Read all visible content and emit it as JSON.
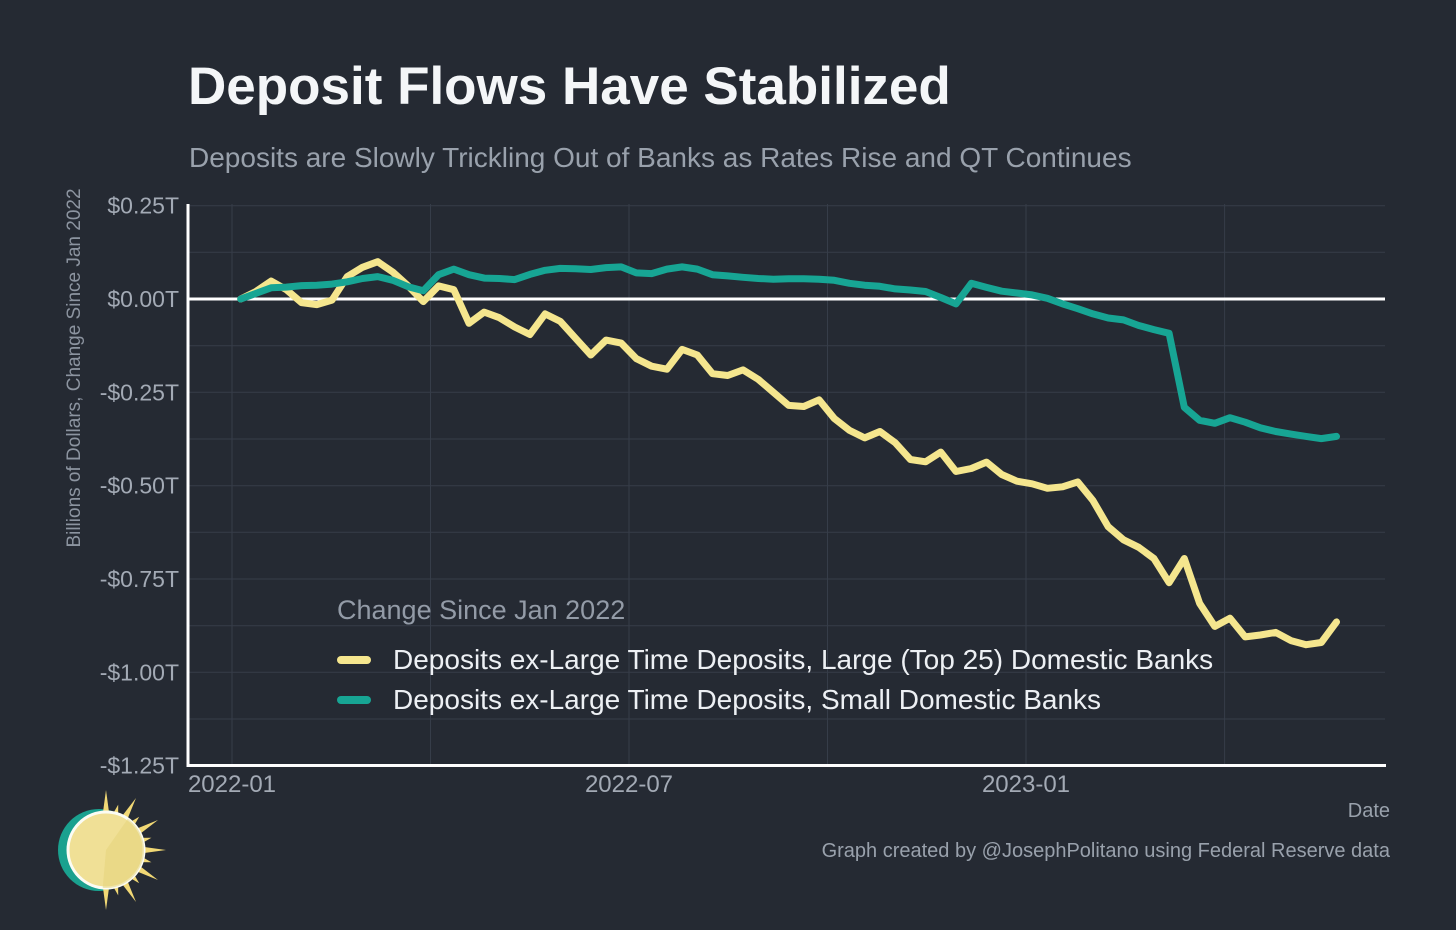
{
  "chart_data": {
    "type": "line",
    "title": "Deposit Flows Have Stabilized",
    "subtitle": "Deposits are Slowly Trickling Out of Banks as Rates Rise and QT Continues",
    "xlabel": "Date",
    "ylabel": "Billions of Dollars, Change Since Jan 2022",
    "legend": {
      "title": "Change Since Jan 2022",
      "position": "inside-bottom-left"
    },
    "x": {
      "start": "2022-01",
      "frequency": "weekly",
      "tick_labels": [
        "2022-01",
        "2022-07",
        "2023-01"
      ],
      "tick_month_offsets": [
        0,
        6,
        12
      ],
      "gridline_month_offsets": [
        0,
        3,
        6,
        9,
        12,
        15
      ]
    },
    "y": {
      "tick_labels": [
        "$0.25T",
        "$0.00T",
        "-$0.25T",
        "-$0.50T",
        "-$0.75T",
        "-$1.00T",
        "-$1.25T"
      ],
      "tick_values": [
        0.25,
        0,
        -0.25,
        -0.5,
        -0.75,
        -1,
        -1.25
      ],
      "lim": [
        -1.25,
        0.25
      ],
      "gridline_step": 0.125,
      "units": "trillions_usd"
    },
    "series": [
      {
        "name": "Deposits ex-Large Time Deposits, Large (Top 25) Domestic Banks",
        "color": "#f5e68e",
        "values": [
          0.0,
          0.02,
          0.048,
          0.025,
          -0.01,
          -0.015,
          -0.003,
          0.06,
          0.085,
          0.1,
          0.072,
          0.035,
          -0.007,
          0.035,
          0.025,
          -0.065,
          -0.035,
          -0.05,
          -0.075,
          -0.095,
          -0.04,
          -0.06,
          -0.105,
          -0.15,
          -0.11,
          -0.118,
          -0.16,
          -0.18,
          -0.188,
          -0.135,
          -0.15,
          -0.2,
          -0.205,
          -0.19,
          -0.215,
          -0.25,
          -0.285,
          -0.288,
          -0.27,
          -0.32,
          -0.352,
          -0.372,
          -0.355,
          -0.385,
          -0.43,
          -0.436,
          -0.41,
          -0.462,
          -0.454,
          -0.437,
          -0.47,
          -0.488,
          -0.495,
          -0.507,
          -0.503,
          -0.49,
          -0.54,
          -0.61,
          -0.645,
          -0.665,
          -0.695,
          -0.76,
          -0.695,
          -0.815,
          -0.877,
          -0.855,
          -0.905,
          -0.9,
          -0.893,
          -0.915,
          -0.926,
          -0.92,
          -0.865
        ]
      },
      {
        "name": "Deposits ex-Large Time Deposits, Small Domestic Banks",
        "color": "#17a594",
        "values": [
          0.0,
          0.015,
          0.03,
          0.032,
          0.036,
          0.037,
          0.04,
          0.046,
          0.055,
          0.06,
          0.05,
          0.033,
          0.022,
          0.065,
          0.08,
          0.065,
          0.056,
          0.055,
          0.052,
          0.066,
          0.077,
          0.082,
          0.081,
          0.079,
          0.084,
          0.086,
          0.07,
          0.068,
          0.08,
          0.086,
          0.08,
          0.065,
          0.062,
          0.058,
          0.055,
          0.053,
          0.054,
          0.054,
          0.053,
          0.05,
          0.042,
          0.037,
          0.034,
          0.027,
          0.024,
          0.02,
          0.004,
          -0.013,
          0.042,
          0.031,
          0.021,
          0.016,
          0.011,
          0.002,
          -0.013,
          -0.026,
          -0.04,
          -0.051,
          -0.056,
          -0.071,
          -0.082,
          -0.092,
          -0.29,
          -0.325,
          -0.333,
          -0.318,
          -0.33,
          -0.345,
          -0.355,
          -0.362,
          -0.368,
          -0.374,
          -0.368
        ]
      }
    ]
  },
  "footer": {
    "credit": "Graph created by @JosephPolitano using Federal Reserve data"
  },
  "logo": {
    "label": "apricitas-economics-sun-logo",
    "disc_color": "#f0e096",
    "wedge_color": "#e6d37b",
    "ray_color": "#f1d875",
    "crescent_color": "#1aa18f",
    "ring_color": "#fbfcf4"
  },
  "colors": {
    "background": "#252a33",
    "gridline": "#363d49",
    "axis_line": "#ffffff",
    "tick_text": "#a3aab5",
    "text_muted": "#99a1ac",
    "text_bright": "#f4f6f8"
  }
}
